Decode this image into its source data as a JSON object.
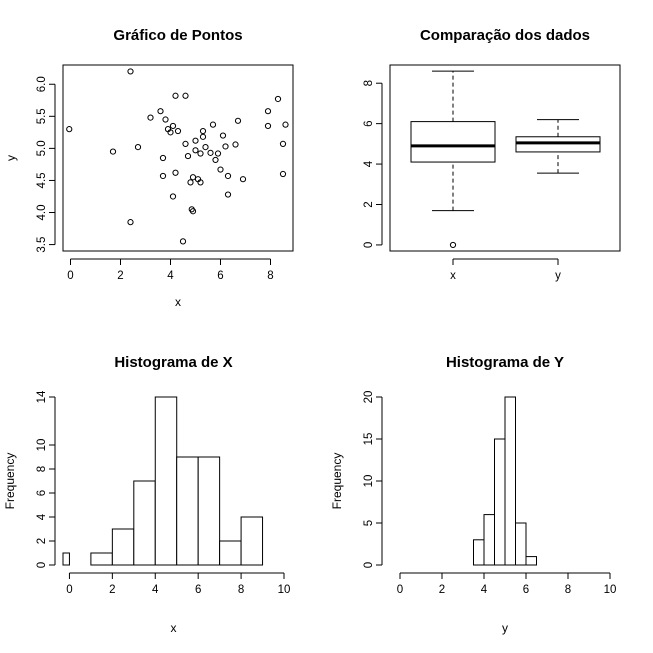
{
  "chart_data": [
    {
      "type": "scatter",
      "title": "Gráfico de Pontos",
      "xlabel": "x",
      "ylabel": "y",
      "xlim": [
        -0.3,
        8.9
      ],
      "ylim": [
        3.4,
        6.3
      ],
      "xticks": [
        "0",
        "2",
        "4",
        "6",
        "8"
      ],
      "yticks": [
        "3.5",
        "4.0",
        "4.5",
        "5.0",
        "5.5",
        "6.0"
      ],
      "points": [
        [
          -0.05,
          5.3
        ],
        [
          1.7,
          4.95
        ],
        [
          2.4,
          6.2
        ],
        [
          2.4,
          3.85
        ],
        [
          2.7,
          5.02
        ],
        [
          3.2,
          5.48
        ],
        [
          3.6,
          5.58
        ],
        [
          3.7,
          4.85
        ],
        [
          3.7,
          4.57
        ],
        [
          3.8,
          5.45
        ],
        [
          3.9,
          5.3
        ],
        [
          4.0,
          5.25
        ],
        [
          4.1,
          5.35
        ],
        [
          4.1,
          4.25
        ],
        [
          4.2,
          4.62
        ],
        [
          4.2,
          5.82
        ],
        [
          4.3,
          5.27
        ],
        [
          4.5,
          3.55
        ],
        [
          4.6,
          5.82
        ],
        [
          4.6,
          5.07
        ],
        [
          4.7,
          4.88
        ],
        [
          4.8,
          4.47
        ],
        [
          4.85,
          4.05
        ],
        [
          4.9,
          4.55
        ],
        [
          4.9,
          4.02
        ],
        [
          5.0,
          4.97
        ],
        [
          5.0,
          5.12
        ],
        [
          5.1,
          4.52
        ],
        [
          5.2,
          4.47
        ],
        [
          5.2,
          4.92
        ],
        [
          5.3,
          5.27
        ],
        [
          5.3,
          5.18
        ],
        [
          5.4,
          5.02
        ],
        [
          5.6,
          4.93
        ],
        [
          5.7,
          5.37
        ],
        [
          5.8,
          4.82
        ],
        [
          5.9,
          4.92
        ],
        [
          6.0,
          4.67
        ],
        [
          6.1,
          5.2
        ],
        [
          6.2,
          5.03
        ],
        [
          6.3,
          4.57
        ],
        [
          6.3,
          4.28
        ],
        [
          6.6,
          5.06
        ],
        [
          6.7,
          5.43
        ],
        [
          6.9,
          4.52
        ],
        [
          7.9,
          5.58
        ],
        [
          7.9,
          5.35
        ],
        [
          8.3,
          5.77
        ],
        [
          8.5,
          5.07
        ],
        [
          8.5,
          4.6
        ],
        [
          8.6,
          5.37
        ]
      ]
    },
    {
      "type": "boxplot",
      "title": "Comparação dos dados",
      "categories": [
        "x",
        "y"
      ],
      "ylim": [
        -0.3,
        8.9
      ],
      "yticks": [
        "0",
        "2",
        "4",
        "6",
        "8"
      ],
      "boxes": [
        {
          "name": "x",
          "min": 1.7,
          "q1": 4.1,
          "median": 4.9,
          "q3": 6.1,
          "max": 8.6,
          "outliers": [
            0.0
          ]
        },
        {
          "name": "y",
          "min": 3.55,
          "q1": 4.6,
          "median": 5.05,
          "q3": 5.35,
          "max": 6.2,
          "outliers": []
        }
      ]
    },
    {
      "type": "histogram",
      "title": "Histograma de X",
      "xlabel": "x",
      "ylabel": "Frequency",
      "xlim": [
        -0.3,
        10
      ],
      "ylim": [
        0,
        14
      ],
      "xticks": [
        "0",
        "2",
        "4",
        "6",
        "8",
        "10"
      ],
      "yticks": [
        "0",
        "2",
        "4",
        "6",
        "8",
        "10",
        "14"
      ],
      "bins": [
        {
          "from": -0.3,
          "to": 0,
          "count": 1
        },
        {
          "from": 1,
          "to": 2,
          "count": 1
        },
        {
          "from": 2,
          "to": 3,
          "count": 3
        },
        {
          "from": 3,
          "to": 4,
          "count": 7
        },
        {
          "from": 4,
          "to": 5,
          "count": 14
        },
        {
          "from": 5,
          "to": 6,
          "count": 9
        },
        {
          "from": 6,
          "to": 7,
          "count": 9
        },
        {
          "from": 7,
          "to": 8,
          "count": 2
        },
        {
          "from": 8,
          "to": 9,
          "count": 4
        }
      ]
    },
    {
      "type": "histogram",
      "title": "Histograma de Y",
      "xlabel": "y",
      "ylabel": "Frequency",
      "xlim": [
        0,
        10
      ],
      "ylim": [
        0,
        20
      ],
      "xticks": [
        "0",
        "2",
        "4",
        "6",
        "8",
        "10"
      ],
      "yticks": [
        "0",
        "5",
        "10",
        "15",
        "20"
      ],
      "bins": [
        {
          "from": 3.5,
          "to": 4.0,
          "count": 3
        },
        {
          "from": 4.0,
          "to": 4.5,
          "count": 6
        },
        {
          "from": 4.5,
          "to": 5.0,
          "count": 15
        },
        {
          "from": 5.0,
          "to": 5.5,
          "count": 20
        },
        {
          "from": 5.5,
          "to": 6.0,
          "count": 5
        },
        {
          "from": 6.0,
          "to": 6.5,
          "count": 1
        }
      ]
    }
  ]
}
